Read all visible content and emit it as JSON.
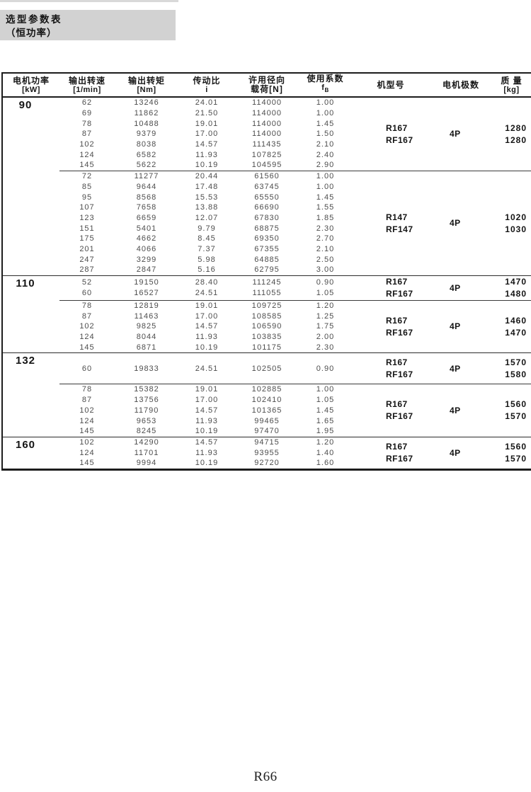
{
  "page": {
    "title_box": {
      "line1": "选型参数表",
      "line2": "（恒功率）"
    },
    "footer": "R66"
  },
  "table": {
    "headers": [
      {
        "label": "电机功率",
        "unit": "[kW]"
      },
      {
        "label": "输出转速",
        "unit": "[1/min]"
      },
      {
        "label": "输出转矩",
        "unit": "[Nm]"
      },
      {
        "label": "传动比",
        "unit": "i"
      },
      {
        "label": "许用径向",
        "unit": "载荷[N]"
      },
      {
        "label": "使用系数",
        "unit": "f",
        "unit_sub": "B"
      },
      {
        "label": "机型号"
      },
      {
        "label": "电机极数"
      },
      {
        "label": "质 量",
        "unit": "[kg]"
      }
    ],
    "sections": [
      {
        "power": "90",
        "blocks": [
          {
            "rows": [
              [
                "62",
                "13246",
                "24.01",
                "114000",
                "1.00"
              ],
              [
                "69",
                "11862",
                "21.50",
                "114000",
                "1.00"
              ],
              [
                "78",
                "10488",
                "19.01",
                "114000",
                "1.45"
              ],
              [
                "87",
                "9379",
                "17.00",
                "114000",
                "1.50"
              ],
              [
                "102",
                "8038",
                "14.57",
                "111435",
                "2.10"
              ],
              [
                "124",
                "6582",
                "11.93",
                "107825",
                "2.40"
              ],
              [
                "145",
                "5622",
                "10.19",
                "104595",
                "2.90"
              ]
            ],
            "models": [
              "R167",
              "RF167"
            ],
            "poles": "4P",
            "masses": [
              "1280",
              "1280"
            ]
          },
          {
            "rows": [
              [
                "72",
                "11277",
                "20.44",
                "61560",
                "1.00"
              ],
              [
                "85",
                "9644",
                "17.48",
                "63745",
                "1.00"
              ],
              [
                "95",
                "8568",
                "15.53",
                "65550",
                "1.45"
              ],
              [
                "107",
                "7658",
                "13.88",
                "66690",
                "1.55"
              ],
              [
                "123",
                "6659",
                "12.07",
                "67830",
                "1.85"
              ],
              [
                "151",
                "5401",
                "9.79",
                "68875",
                "2.30"
              ],
              [
                "175",
                "4662",
                "8.45",
                "69350",
                "2.70"
              ],
              [
                "201",
                "4066",
                "7.37",
                "67355",
                "2.10"
              ],
              [
                "247",
                "3299",
                "5.98",
                "64885",
                "2.50"
              ],
              [
                "287",
                "2847",
                "5.16",
                "62795",
                "3.00"
              ]
            ],
            "models": [
              "R147",
              "RF147"
            ],
            "poles": "4P",
            "masses": [
              "1020",
              "1030"
            ]
          }
        ]
      },
      {
        "power": "110",
        "blocks": [
          {
            "rows": [
              [
                "52",
                "19150",
                "28.40",
                "111245",
                "0.90"
              ],
              [
                "60",
                "16527",
                "24.51",
                "111055",
                "1.05"
              ]
            ],
            "models": [
              "R167",
              "RF167"
            ],
            "poles": "4P",
            "masses": [
              "1470",
              "1480"
            ]
          },
          {
            "rows": [
              [
                "78",
                "12819",
                "19.01",
                "109725",
                "1.20"
              ],
              [
                "87",
                "11463",
                "17.00",
                "108585",
                "1.25"
              ],
              [
                "102",
                "9825",
                "14.57",
                "106590",
                "1.75"
              ],
              [
                "124",
                "8044",
                "11.93",
                "103835",
                "2.00"
              ],
              [
                "145",
                "6871",
                "10.19",
                "101175",
                "2.30"
              ]
            ],
            "models": [
              "R167",
              "RF167"
            ],
            "poles": "4P",
            "masses": [
              "1460",
              "1470"
            ]
          }
        ]
      },
      {
        "power": "132",
        "blocks": [
          {
            "rows": [
              [
                "60",
                "19833",
                "24.51",
                "102505",
                "0.90"
              ]
            ],
            "tall": true,
            "models": [
              "R167",
              "RF167"
            ],
            "poles": "4P",
            "masses": [
              "1570",
              "1580"
            ]
          },
          {
            "rows": [
              [
                "78",
                "15382",
                "19.01",
                "102885",
                "1.00"
              ],
              [
                "87",
                "13756",
                "17.00",
                "102410",
                "1.05"
              ],
              [
                "102",
                "11790",
                "14.57",
                "101365",
                "1.45"
              ],
              [
                "124",
                "9653",
                "11.93",
                "99465",
                "1.65"
              ],
              [
                "145",
                "8245",
                "10.19",
                "97470",
                "1.95"
              ]
            ],
            "models": [
              "R167",
              "RF167"
            ],
            "poles": "4P",
            "masses": [
              "1560",
              "1570"
            ]
          }
        ]
      },
      {
        "power": "160",
        "blocks": [
          {
            "rows": [
              [
                "102",
                "14290",
                "14.57",
                "94715",
                "1.20"
              ],
              [
                "124",
                "11701",
                "11.93",
                "93955",
                "1.40"
              ],
              [
                "145",
                "9994",
                "10.19",
                "92720",
                "1.60"
              ]
            ],
            "models": [
              "R167",
              "RF167"
            ],
            "poles": "4P",
            "masses": [
              "1560",
              "1570"
            ]
          }
        ]
      }
    ]
  }
}
